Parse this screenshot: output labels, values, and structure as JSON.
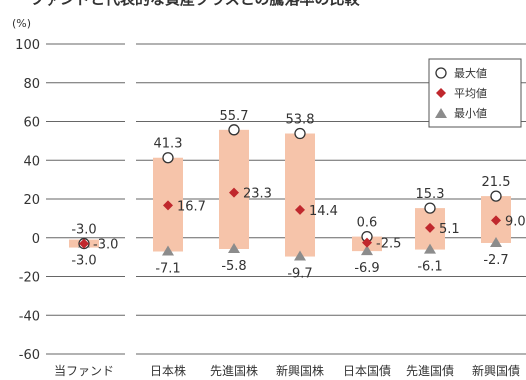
{
  "chart_data": {
    "type": "range-bar",
    "title": "ファンドと代表的な資産クラスとの騰落率の比較",
    "unit": "(%)",
    "ylim": [
      -60,
      100
    ],
    "yticks": [
      "100",
      "80",
      "60",
      "40",
      "20",
      "0",
      "-20",
      "-40",
      "-60"
    ],
    "categories": [
      "当ファンド",
      "日本株",
      "先進国株",
      "新興国株",
      "日本国債",
      "先進国債",
      "新興国債"
    ],
    "max": [
      -3.0,
      41.3,
      55.7,
      53.8,
      0.6,
      15.3,
      21.5
    ],
    "avg": [
      -3.0,
      16.7,
      23.3,
      14.4,
      -2.5,
      5.1,
      9.0
    ],
    "min": [
      -3.0,
      -7.1,
      -5.8,
      -9.7,
      -6.9,
      -6.1,
      -2.7
    ],
    "max_labels": [
      "-3.0",
      "41.3",
      "55.7",
      "53.8",
      "0.6",
      "15.3",
      "21.5"
    ],
    "avg_labels": [
      "-3.0",
      "16.7",
      "23.3",
      "14.4",
      "-2.5",
      "5.1",
      "9.0"
    ],
    "min_labels": [
      "-3.0",
      "-7.1",
      "-5.8",
      "-9.7",
      "-6.9",
      "-6.1",
      "-2.7"
    ],
    "legend": {
      "max_label": "最大値",
      "avg_label": "平均値",
      "min_label": "最小値"
    },
    "colors": {
      "bar": "#f6c4aa",
      "avg_marker": "#c0282d",
      "min_marker": "#8c8c8c",
      "grid": "#666666"
    }
  }
}
